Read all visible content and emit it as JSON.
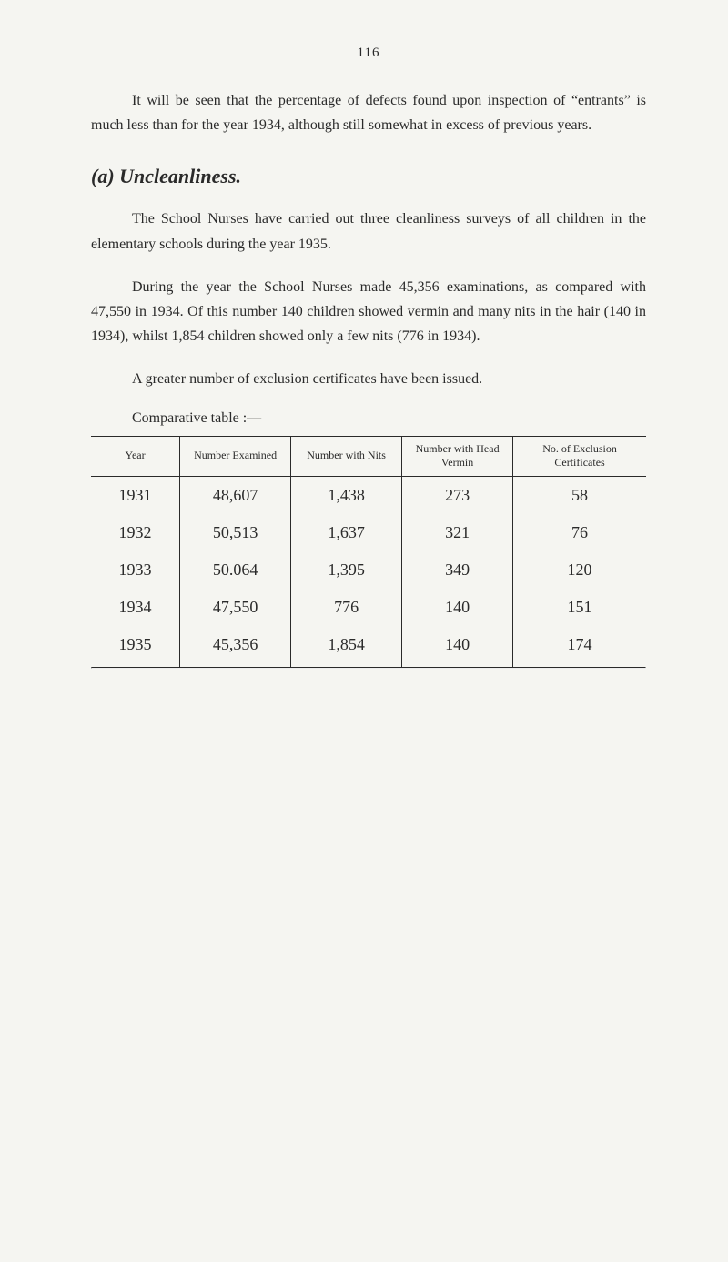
{
  "page_number": "116",
  "paragraphs": {
    "p1": "It will be seen that the percentage of defects found upon in­spection of “entrants” is much less than for the year 1934, al­though still somewhat in excess of previous years.",
    "p2": "The School Nurses have carried out three cleanliness surveys of all children in the elementary schools during the year 1935.",
    "p3": "During the year the School Nurses made 45,356 examinations, as compared with 47,550 in 1934.  Of this number 140 children showed vermin and many nits in the hair (140 in 1934), whilst 1,854 children showed only a few nits (776 in 1934).",
    "p4": "A greater number of exclusion certificates have been issued."
  },
  "section": {
    "label": "(a)",
    "title": "Uncleanliness."
  },
  "table_intro": "Comparative table :—",
  "table": {
    "columns": [
      "Year",
      "Number Examined",
      "Number with Nits",
      "Number with Head Vermin",
      "No. of Exclusion Certificates"
    ],
    "rows": [
      [
        "1931",
        "48,607",
        "1,438",
        "273",
        "58"
      ],
      [
        "1932",
        "50,513",
        "1,637",
        "321",
        "76"
      ],
      [
        "1933",
        "50.064",
        "1,395",
        "349",
        "120"
      ],
      [
        "1934",
        "47,550",
        "776",
        "140",
        "151"
      ],
      [
        "1935",
        "45,356",
        "1,854",
        "140",
        "174"
      ]
    ],
    "header_fontsize": 12,
    "cell_fontsize": 18,
    "border_color": "#2a2a2a"
  },
  "colors": {
    "background": "#f5f5f1",
    "text": "#2a2a2a"
  },
  "typography": {
    "body_font": "Georgia, Times New Roman, serif",
    "body_size_pt": 12,
    "heading_size_pt": 16
  }
}
